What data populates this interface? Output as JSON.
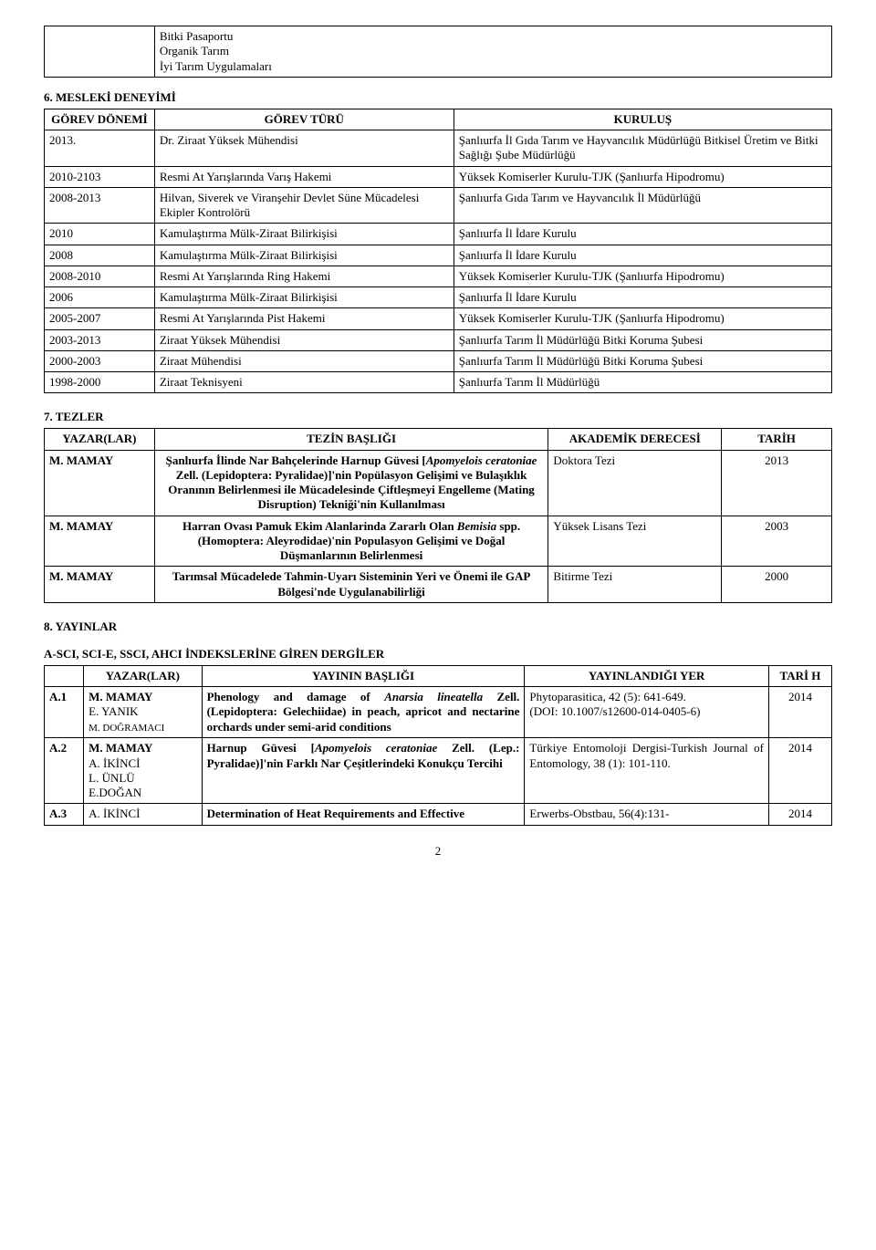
{
  "boxA": {
    "lines": [
      "Bitki Pasaportu",
      "Organik Tarım",
      "İyi Tarım Uygulamaları"
    ]
  },
  "sec6": {
    "title": "6. MESLEKİ DENEYİMİ",
    "headers": [
      "GÖREV DÖNEMİ",
      "GÖREV TÜRÜ",
      "KURULUŞ"
    ],
    "rows": [
      [
        "2013.",
        "Dr. Ziraat Yüksek Mühendisi",
        "Şanlıurfa İl Gıda Tarım ve Hayvancılık Müdürlüğü Bitkisel Üretim ve Bitki Sağlığı Şube Müdürlüğü"
      ],
      [
        "2010-2103",
        "Resmi At Yarışlarında Varış Hakemi",
        "Yüksek Komiserler Kurulu-TJK (Şanlıurfa Hipodromu)"
      ],
      [
        "2008-2013",
        "Hilvan, Siverek ve Viranşehir Devlet Süne Mücadelesi Ekipler Kontrolörü",
        "Şanlıurfa Gıda Tarım ve Hayvancılık İl Müdürlüğü"
      ],
      [
        "2010",
        "Kamulaştırma Mülk-Ziraat Bilirkişisi",
        "Şanlıurfa İl İdare Kurulu"
      ],
      [
        "2008",
        "Kamulaştırma Mülk-Ziraat Bilirkişisi",
        "Şanlıurfa İl İdare Kurulu"
      ],
      [
        "2008-2010",
        "Resmi At Yarışlarında Ring Hakemi",
        "Yüksek Komiserler Kurulu-TJK (Şanlıurfa Hipodromu)"
      ],
      [
        "2006",
        "Kamulaştırma Mülk-Ziraat Bilirkişisi",
        "Şanlıurfa İl İdare Kurulu"
      ],
      [
        "2005-2007",
        "Resmi At Yarışlarında Pist Hakemi",
        "Yüksek Komiserler Kurulu-TJK (Şanlıurfa Hipodromu)"
      ],
      [
        "2003-2013",
        "Ziraat Yüksek Mühendisi",
        "Şanlıurfa Tarım İl Müdürlüğü Bitki Koruma Şubesi"
      ],
      [
        "2000-2003",
        "Ziraat Mühendisi",
        "Şanlıurfa Tarım İl Müdürlüğü Bitki Koruma Şubesi"
      ],
      [
        "1998-2000",
        "Ziraat Teknisyeni",
        "Şanlıurfa Tarım İl Müdürlüğü"
      ]
    ],
    "col_widths": [
      "14%",
      "38%",
      "48%"
    ]
  },
  "sec7": {
    "title": "7. TEZLER",
    "headers": [
      "YAZAR(LAR)",
      "TEZİN BAŞLIĞI",
      "AKADEMİK DERECESİ",
      "TARİH"
    ],
    "rows": [
      {
        "author": "M. MAMAY",
        "html": "<b>Şanlıurfa İlinde Nar Bahçelerinde Harnup Güvesi [<span class=\"italic\">Apomyelois ceratoniae</span> Zell. (Lepidoptera: Pyralidae)]'nin Popülasyon Gelişimi ve Bulaşıklık Oranının Belirlenmesi ile Mücadelesinde Çiftleşmeyi Engelleme (Mating Disruption) Tekniği'nin Kullanılması</b>",
        "degree": "Doktora Tezi",
        "year": "2013"
      },
      {
        "author": "M. MAMAY",
        "html": "<b>Harran Ovası Pamuk Ekim Alanlarinda Zararlı Olan <span class=\"italic\">Bemisia</span> spp. (Homoptera: Aleyrodidae)'nin Populasyon Gelişimi ve Doğal Düşmanlarının Belirlenmesi</b>",
        "degree": "Yüksek Lisans Tezi",
        "year": "2003"
      },
      {
        "author": "M. MAMAY",
        "html": "<b>Tarımsal Mücadelede Tahmin-Uyarı Sisteminin Yeri ve Önemi ile GAP Bölgesi'nde Uygulanabilirliği</b>",
        "degree": "Bitirme Tezi",
        "year": "2000"
      }
    ],
    "col_widths": [
      "14%",
      "50%",
      "22%",
      "14%"
    ]
  },
  "sec8": {
    "title": "8. YAYINLAR",
    "subtitle": "A-SCI, SCI-E, SSCI, AHCI İNDEKSLERİNE GİREN DERGİLER",
    "headers": [
      "",
      "YAZAR(LAR)",
      "YAYININ BAŞLIĞI",
      "YAYINLANDIĞI YER",
      "TARİ H"
    ],
    "rows": [
      {
        "idx": "A.1",
        "authors_html": "<b>M. MAMAY</b><br>E. YANIK<br><span class=\"small-auth\">M. DOĞRAMACI</span>",
        "title_html": "<b>Phenology and damage of <span class=\"italic\">Anarsia lineatella</span> Zell. (Lepidoptera: Gelechiidae) in peach, apricot and nectarine orchards under semi-arid conditions</b>",
        "journal_html": "Phytoparasitica, 42 (5): 641-649.<br>(DOI: 10.1007/s12600-014-0405-6)",
        "year": "2014"
      },
      {
        "idx": "A.2",
        "authors_html": "<b>M. MAMAY</b><br>A. İKİNCİ<br>L. ÜNLÜ<br>E.DOĞAN",
        "title_html": "<b>Harnup Güvesi [<span class=\"italic\">Apomyelois ceratoniae</span> Zell. (Lep.: Pyralidae)]'nin Farklı Nar Çeşitlerindeki Konukçu Tercihi</b>",
        "journal_html": "Türkiye Entomoloji Dergisi-Turkish Journal of Entomology, 38 (1): 101-110.",
        "year": "2014"
      },
      {
        "idx": "A.3",
        "authors_html": "A. İKİNCİ",
        "title_html": "<b>Determination of Heat Requirements and Effective</b>",
        "journal_html": "Erwerbs-Obstbau, 56(4):131-",
        "year": "2014"
      }
    ],
    "col_widths": [
      "5%",
      "15%",
      "41%",
      "31%",
      "8%"
    ]
  },
  "page_number": "2"
}
